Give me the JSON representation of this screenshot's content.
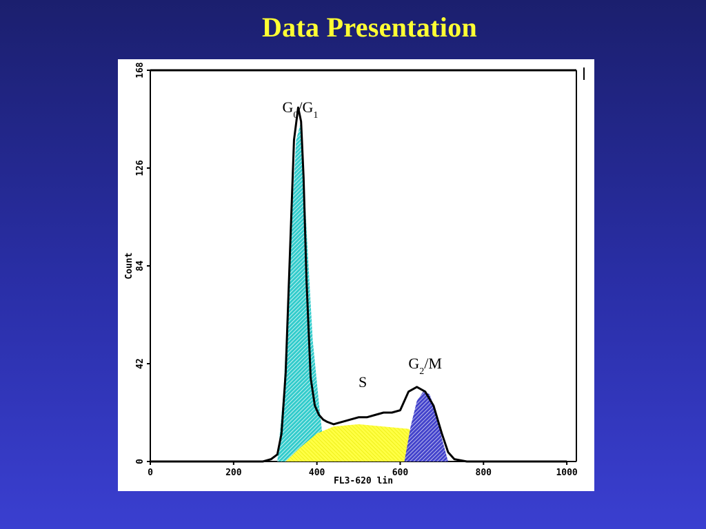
{
  "slide": {
    "title": "Data Presentation"
  },
  "chart_data": {
    "type": "area",
    "xlabel": "FL3-620 lin",
    "ylabel": "Count",
    "xlim": [
      0,
      1023
    ],
    "ylim": [
      0,
      168
    ],
    "x_ticks": [
      "0",
      "200",
      "400",
      "600",
      "800",
      "1000"
    ],
    "y_ticks": [
      "0",
      "42",
      "84",
      "126",
      "168"
    ],
    "grid": false,
    "histogram": {
      "x": [
        0,
        100,
        200,
        270,
        290,
        305,
        315,
        325,
        335,
        345,
        355,
        362,
        368,
        375,
        385,
        395,
        405,
        415,
        425,
        440,
        460,
        480,
        500,
        520,
        540,
        560,
        580,
        600,
        620,
        640,
        660,
        680,
        700,
        715,
        730,
        760,
        800,
        900,
        1000
      ],
      "y": [
        0,
        0,
        0,
        0,
        1,
        3,
        12,
        38,
        88,
        138,
        152,
        146,
        122,
        78,
        36,
        24,
        20,
        18,
        17,
        16,
        17,
        18,
        19,
        19,
        20,
        21,
        21,
        22,
        30,
        32,
        30,
        24,
        12,
        4,
        1,
        0,
        0,
        0,
        0
      ]
    },
    "components": [
      {
        "name": "G0/G1",
        "color": "#33cccc",
        "x": [
          305,
          320,
          335,
          350,
          362,
          375,
          390,
          405,
          420
        ],
        "y": [
          0,
          30,
          88,
          138,
          146,
          100,
          52,
          25,
          0
        ]
      },
      {
        "name": "S",
        "color": "#ffff44",
        "x": [
          325,
          360,
          400,
          440,
          500,
          560,
          620,
          660,
          700
        ],
        "y": [
          0,
          6,
          12,
          15,
          16,
          15,
          14,
          9,
          0
        ]
      },
      {
        "name": "G2/M",
        "color": "#4444cc",
        "x": [
          610,
          625,
          640,
          655,
          670,
          685,
          700,
          715
        ],
        "y": [
          0,
          15,
          26,
          30,
          29,
          22,
          10,
          0
        ]
      }
    ],
    "annotations": [
      {
        "label": "G",
        "sub": "0",
        "mid": "/G",
        "sub2": "1",
        "x": 360,
        "y": 150
      },
      {
        "label": "S",
        "x": 510,
        "y": 32
      },
      {
        "label": "G",
        "sub": "2",
        "mid": "/M",
        "sub2": "",
        "x": 660,
        "y": 40
      }
    ]
  }
}
